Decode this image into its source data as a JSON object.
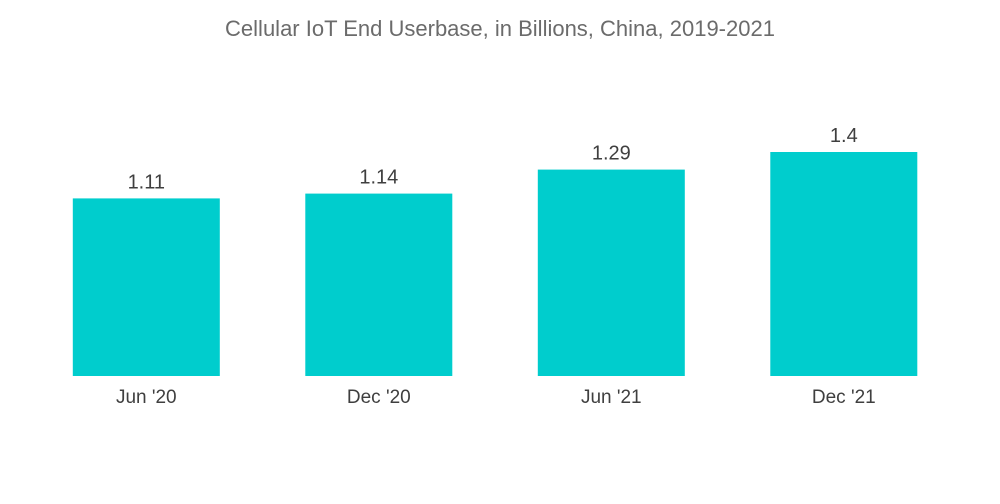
{
  "colors": {
    "bar": "#00CDCD"
  },
  "chart_data": {
    "type": "bar",
    "title": "Cellular IoT End Userbase, in Billions, China, 2019-2021",
    "categories": [
      "Jun '20",
      "Dec '20",
      "Jun '21",
      "Dec '21"
    ],
    "values": [
      1.11,
      1.14,
      1.29,
      1.4
    ],
    "value_labels": [
      "1.11",
      "1.14",
      "1.29",
      "1.4"
    ],
    "xlabel": "",
    "ylabel": "",
    "ylim": [
      0,
      2.35
    ],
    "grid": false,
    "legend": "none"
  }
}
